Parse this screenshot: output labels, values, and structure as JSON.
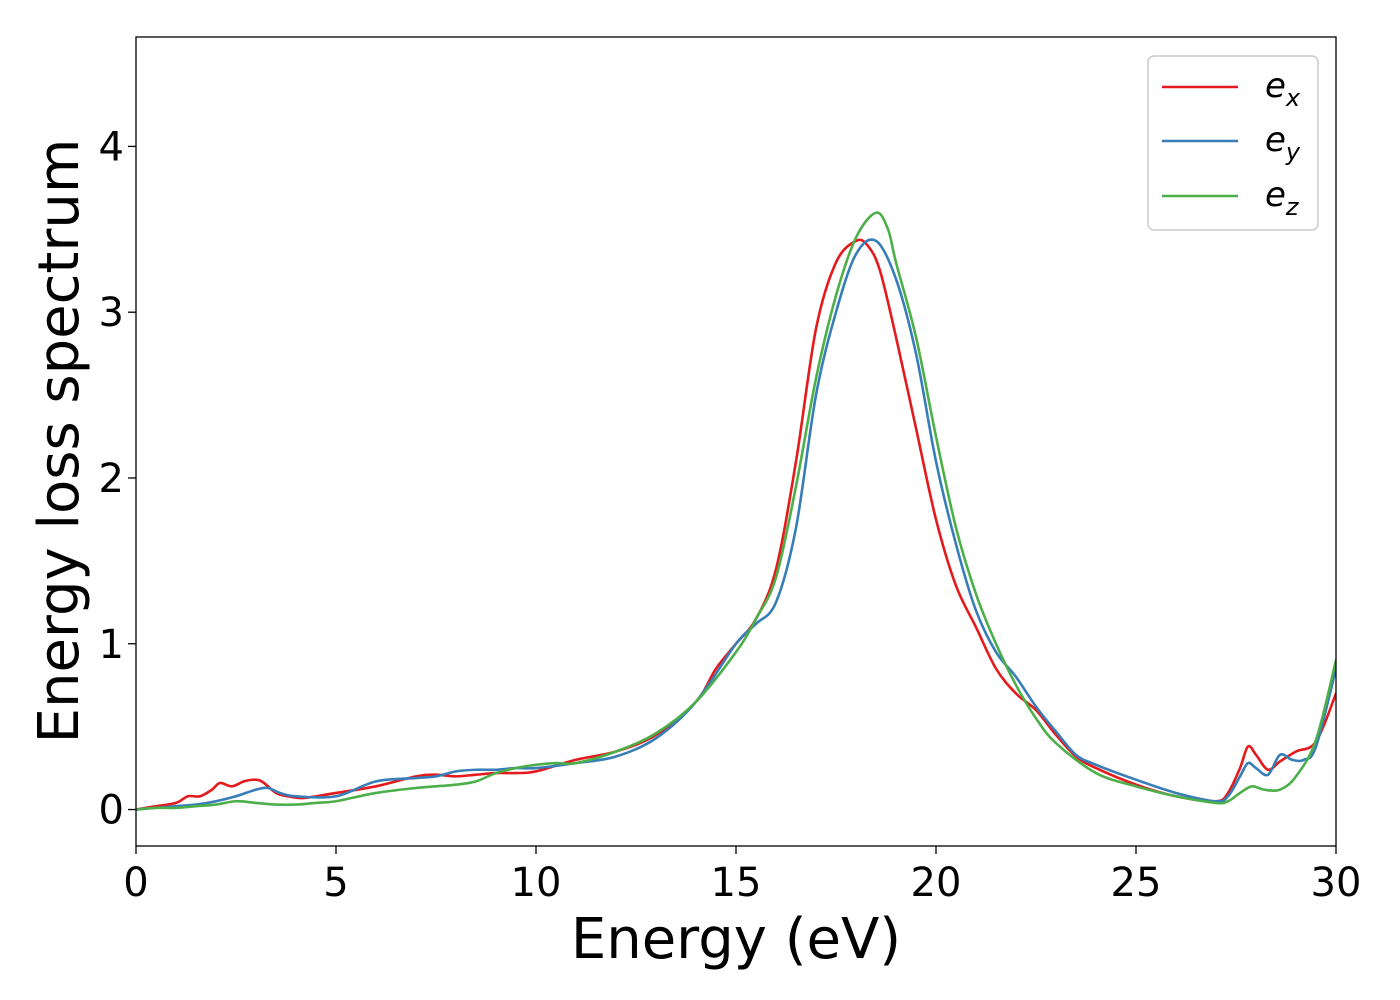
{
  "chart_data": {
    "type": "line",
    "title": "",
    "xlabel": "Energy (eV)",
    "ylabel": "Energy loss spectrum",
    "xlim": [
      0,
      30
    ],
    "ylim": [
      -0.22,
      4.66
    ],
    "xticks": [
      "0",
      "5",
      "10",
      "15",
      "20",
      "25",
      "30"
    ],
    "yticks": [
      "0",
      "1",
      "2",
      "3",
      "4"
    ],
    "grid": false,
    "legend_position": "top-right",
    "series": [
      {
        "name": "e",
        "subscript": "x",
        "color": "#e41a1c",
        "x": [
          0,
          0.5,
          1,
          1.3,
          1.6,
          1.9,
          2.1,
          2.4,
          2.7,
          3,
          3.2,
          3.5,
          3.8,
          4.2,
          5,
          6,
          7,
          7.5,
          8,
          8.5,
          9,
          9.5,
          10,
          11,
          12,
          13,
          14,
          14.5,
          15,
          15.5,
          16,
          16.5,
          17,
          17.5,
          18,
          18.3,
          18.6,
          19,
          19.5,
          20,
          20.5,
          21,
          21.5,
          22,
          22.5,
          23,
          23.5,
          24,
          25,
          26,
          27,
          27.3,
          27.6,
          27.8,
          28,
          28.3,
          28.6,
          29,
          29.5,
          30
        ],
        "y": [
          0,
          0.02,
          0.04,
          0.08,
          0.08,
          0.12,
          0.16,
          0.14,
          0.17,
          0.18,
          0.16,
          0.1,
          0.08,
          0.07,
          0.1,
          0.14,
          0.2,
          0.21,
          0.2,
          0.21,
          0.22,
          0.22,
          0.23,
          0.3,
          0.35,
          0.45,
          0.65,
          0.85,
          1.0,
          1.15,
          1.45,
          2.1,
          2.9,
          3.3,
          3.43,
          3.4,
          3.25,
          2.85,
          2.3,
          1.75,
          1.35,
          1.1,
          0.85,
          0.7,
          0.6,
          0.45,
          0.32,
          0.25,
          0.15,
          0.08,
          0.05,
          0.1,
          0.25,
          0.38,
          0.33,
          0.24,
          0.29,
          0.35,
          0.41,
          0.7
        ]
      },
      {
        "name": "e",
        "subscript": "y",
        "color": "#377eb8",
        "x": [
          0,
          0.5,
          1,
          1.5,
          2,
          2.5,
          3,
          3.3,
          3.6,
          4,
          5,
          6,
          7,
          7.5,
          8,
          8.5,
          9,
          9.5,
          10,
          11,
          12,
          13,
          14,
          15,
          15.5,
          16,
          16.5,
          17,
          17.5,
          18,
          18.5,
          19,
          19.5,
          20,
          20.5,
          21,
          21.5,
          22,
          22.5,
          23,
          23.5,
          24,
          25,
          26,
          27,
          27.3,
          27.6,
          27.8,
          28,
          28.3,
          28.6,
          28.9,
          29.2,
          29.5,
          30
        ],
        "y": [
          0,
          0.01,
          0.02,
          0.03,
          0.05,
          0.08,
          0.12,
          0.13,
          0.1,
          0.08,
          0.08,
          0.17,
          0.19,
          0.2,
          0.23,
          0.24,
          0.24,
          0.25,
          0.25,
          0.28,
          0.32,
          0.43,
          0.65,
          1.0,
          1.12,
          1.25,
          1.7,
          2.5,
          3.0,
          3.35,
          3.43,
          3.2,
          2.75,
          2.1,
          1.6,
          1.2,
          0.95,
          0.8,
          0.62,
          0.47,
          0.33,
          0.27,
          0.18,
          0.1,
          0.05,
          0.08,
          0.2,
          0.28,
          0.25,
          0.21,
          0.33,
          0.3,
          0.3,
          0.38,
          0.85
        ]
      },
      {
        "name": "e",
        "subscript": "z",
        "color": "#4daf4a",
        "x": [
          0,
          0.5,
          1,
          1.5,
          2,
          2.5,
          3,
          3.5,
          4,
          4.5,
          5,
          6,
          7,
          8,
          8.5,
          9,
          9.5,
          10,
          10.5,
          11,
          12,
          13,
          14,
          15,
          15.5,
          16,
          16.5,
          17,
          17.5,
          18,
          18.5,
          18.8,
          19,
          19.5,
          20,
          20.5,
          21,
          21.5,
          22,
          22.5,
          23,
          24,
          25,
          26,
          27,
          27.3,
          27.6,
          27.9,
          28.2,
          28.6,
          29,
          29.5,
          30
        ],
        "y": [
          0,
          0.01,
          0.01,
          0.02,
          0.03,
          0.05,
          0.04,
          0.03,
          0.03,
          0.04,
          0.05,
          0.1,
          0.13,
          0.15,
          0.17,
          0.22,
          0.25,
          0.27,
          0.28,
          0.28,
          0.35,
          0.46,
          0.65,
          0.95,
          1.15,
          1.4,
          1.95,
          2.6,
          3.1,
          3.45,
          3.6,
          3.5,
          3.3,
          2.85,
          2.25,
          1.7,
          1.3,
          1.0,
          0.75,
          0.55,
          0.4,
          0.22,
          0.14,
          0.08,
          0.04,
          0.05,
          0.1,
          0.14,
          0.12,
          0.12,
          0.2,
          0.42,
          0.9
        ]
      }
    ]
  }
}
